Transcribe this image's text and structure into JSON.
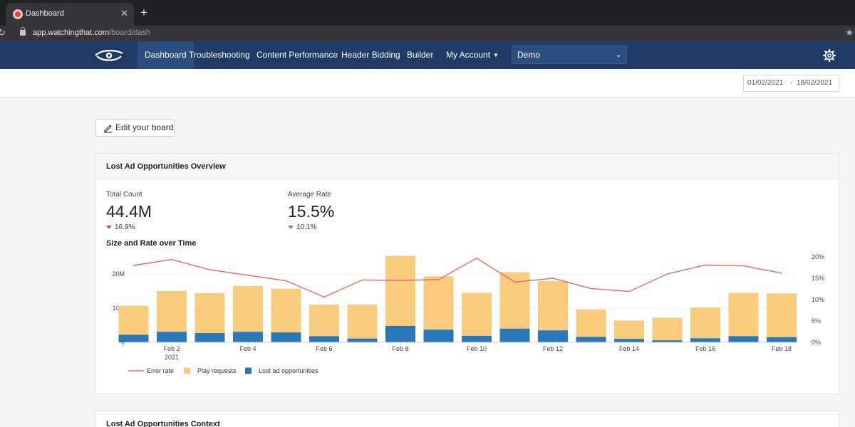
{
  "browser": {
    "tab_title": "Dashboard",
    "tab_close": "✕",
    "new_tab": "+",
    "url_host": "app.watchingthat.com",
    "url_path": "/board/dash"
  },
  "nav": {
    "items": [
      "Dashboard",
      "Troubleshooting",
      "Content Performance",
      "Header Bidding",
      "Builder",
      "My Account"
    ],
    "active": "Dashboard",
    "site_select": "Demo"
  },
  "date_range": {
    "from": "01/02/2021",
    "separator": "-",
    "to": "18/02/2021"
  },
  "edit_button": "Edit your board",
  "overview": {
    "title": "Lost Ad Opportunities Overview",
    "total_count": {
      "label": "Total Count",
      "value": "44.4M",
      "change": "16.9%",
      "direction": "down",
      "color": "#e04a3f"
    },
    "average_rate": {
      "label": "Average Rate",
      "value": "15.5%",
      "change": "10.1%",
      "direction": "down",
      "color": "#4caf3a"
    },
    "chart_title": "Size and Rate over Time"
  },
  "chart_data": {
    "type": "bar",
    "title": "Size and Rate over Time",
    "x": [
      "Feb 1",
      "Feb 2",
      "Feb 3",
      "Feb 4",
      "Feb 5",
      "Feb 6",
      "Feb 7",
      "Feb 8",
      "Feb 9",
      "Feb 10",
      "Feb 11",
      "Feb 12",
      "Feb 13",
      "Feb 14",
      "Feb 15",
      "Feb 16",
      "Feb 17",
      "Feb 18"
    ],
    "x_tick_labels": [
      {
        "index": 1,
        "label": "Feb 2",
        "sublabel": "2021"
      },
      {
        "index": 3,
        "label": "Feb 4"
      },
      {
        "index": 5,
        "label": "Feb 6"
      },
      {
        "index": 7,
        "label": "Feb 8"
      },
      {
        "index": 9,
        "label": "Feb 10"
      },
      {
        "index": 11,
        "label": "Feb 12"
      },
      {
        "index": 13,
        "label": "Feb 14"
      },
      {
        "index": 15,
        "label": "Feb 16"
      },
      {
        "index": 17,
        "label": "Feb 18"
      }
    ],
    "stacked": true,
    "series": [
      {
        "name": "Lost ad opportunities",
        "kind": "bar",
        "axis": "left",
        "color": "#2a77b8",
        "values": [
          2.2,
          3.1,
          2.7,
          3.1,
          2.9,
          1.8,
          1.1,
          4.8,
          3.7,
          1.9,
          4.0,
          3.5,
          1.6,
          1.0,
          0.6,
          1.2,
          1.8,
          1.5
        ]
      },
      {
        "name": "Play requests",
        "kind": "bar",
        "axis": "left",
        "color": "#f8cc7c",
        "values": [
          8.5,
          11.9,
          11.7,
          13.4,
          12.8,
          9.2,
          10.0,
          20.5,
          15.6,
          12.6,
          16.5,
          14.4,
          8.0,
          5.4,
          6.6,
          9.0,
          12.7,
          12.8
        ]
      },
      {
        "name": "Error rate",
        "kind": "line",
        "axis": "right",
        "color": "#e56a66",
        "values": [
          18.0,
          19.4,
          17.0,
          15.7,
          14.4,
          10.6,
          14.6,
          14.5,
          14.7,
          19.7,
          14.1,
          15.0,
          12.6,
          11.9,
          16.0,
          18.1,
          17.9,
          16.2
        ]
      }
    ],
    "y_left": {
      "ticks": [
        "0",
        "10M",
        "20M"
      ],
      "range": [
        0,
        25
      ]
    },
    "y_right": {
      "ticks": [
        "0%",
        "5%",
        "10%",
        "15%",
        "20%"
      ],
      "range": [
        0,
        20
      ]
    },
    "legend": {
      "position": "bottom-left",
      "items": [
        "Error rate",
        "Play requests",
        "Lost ad opportunities"
      ]
    },
    "grid": true
  },
  "context": {
    "title": "Lost Ad Opportunities Context"
  }
}
